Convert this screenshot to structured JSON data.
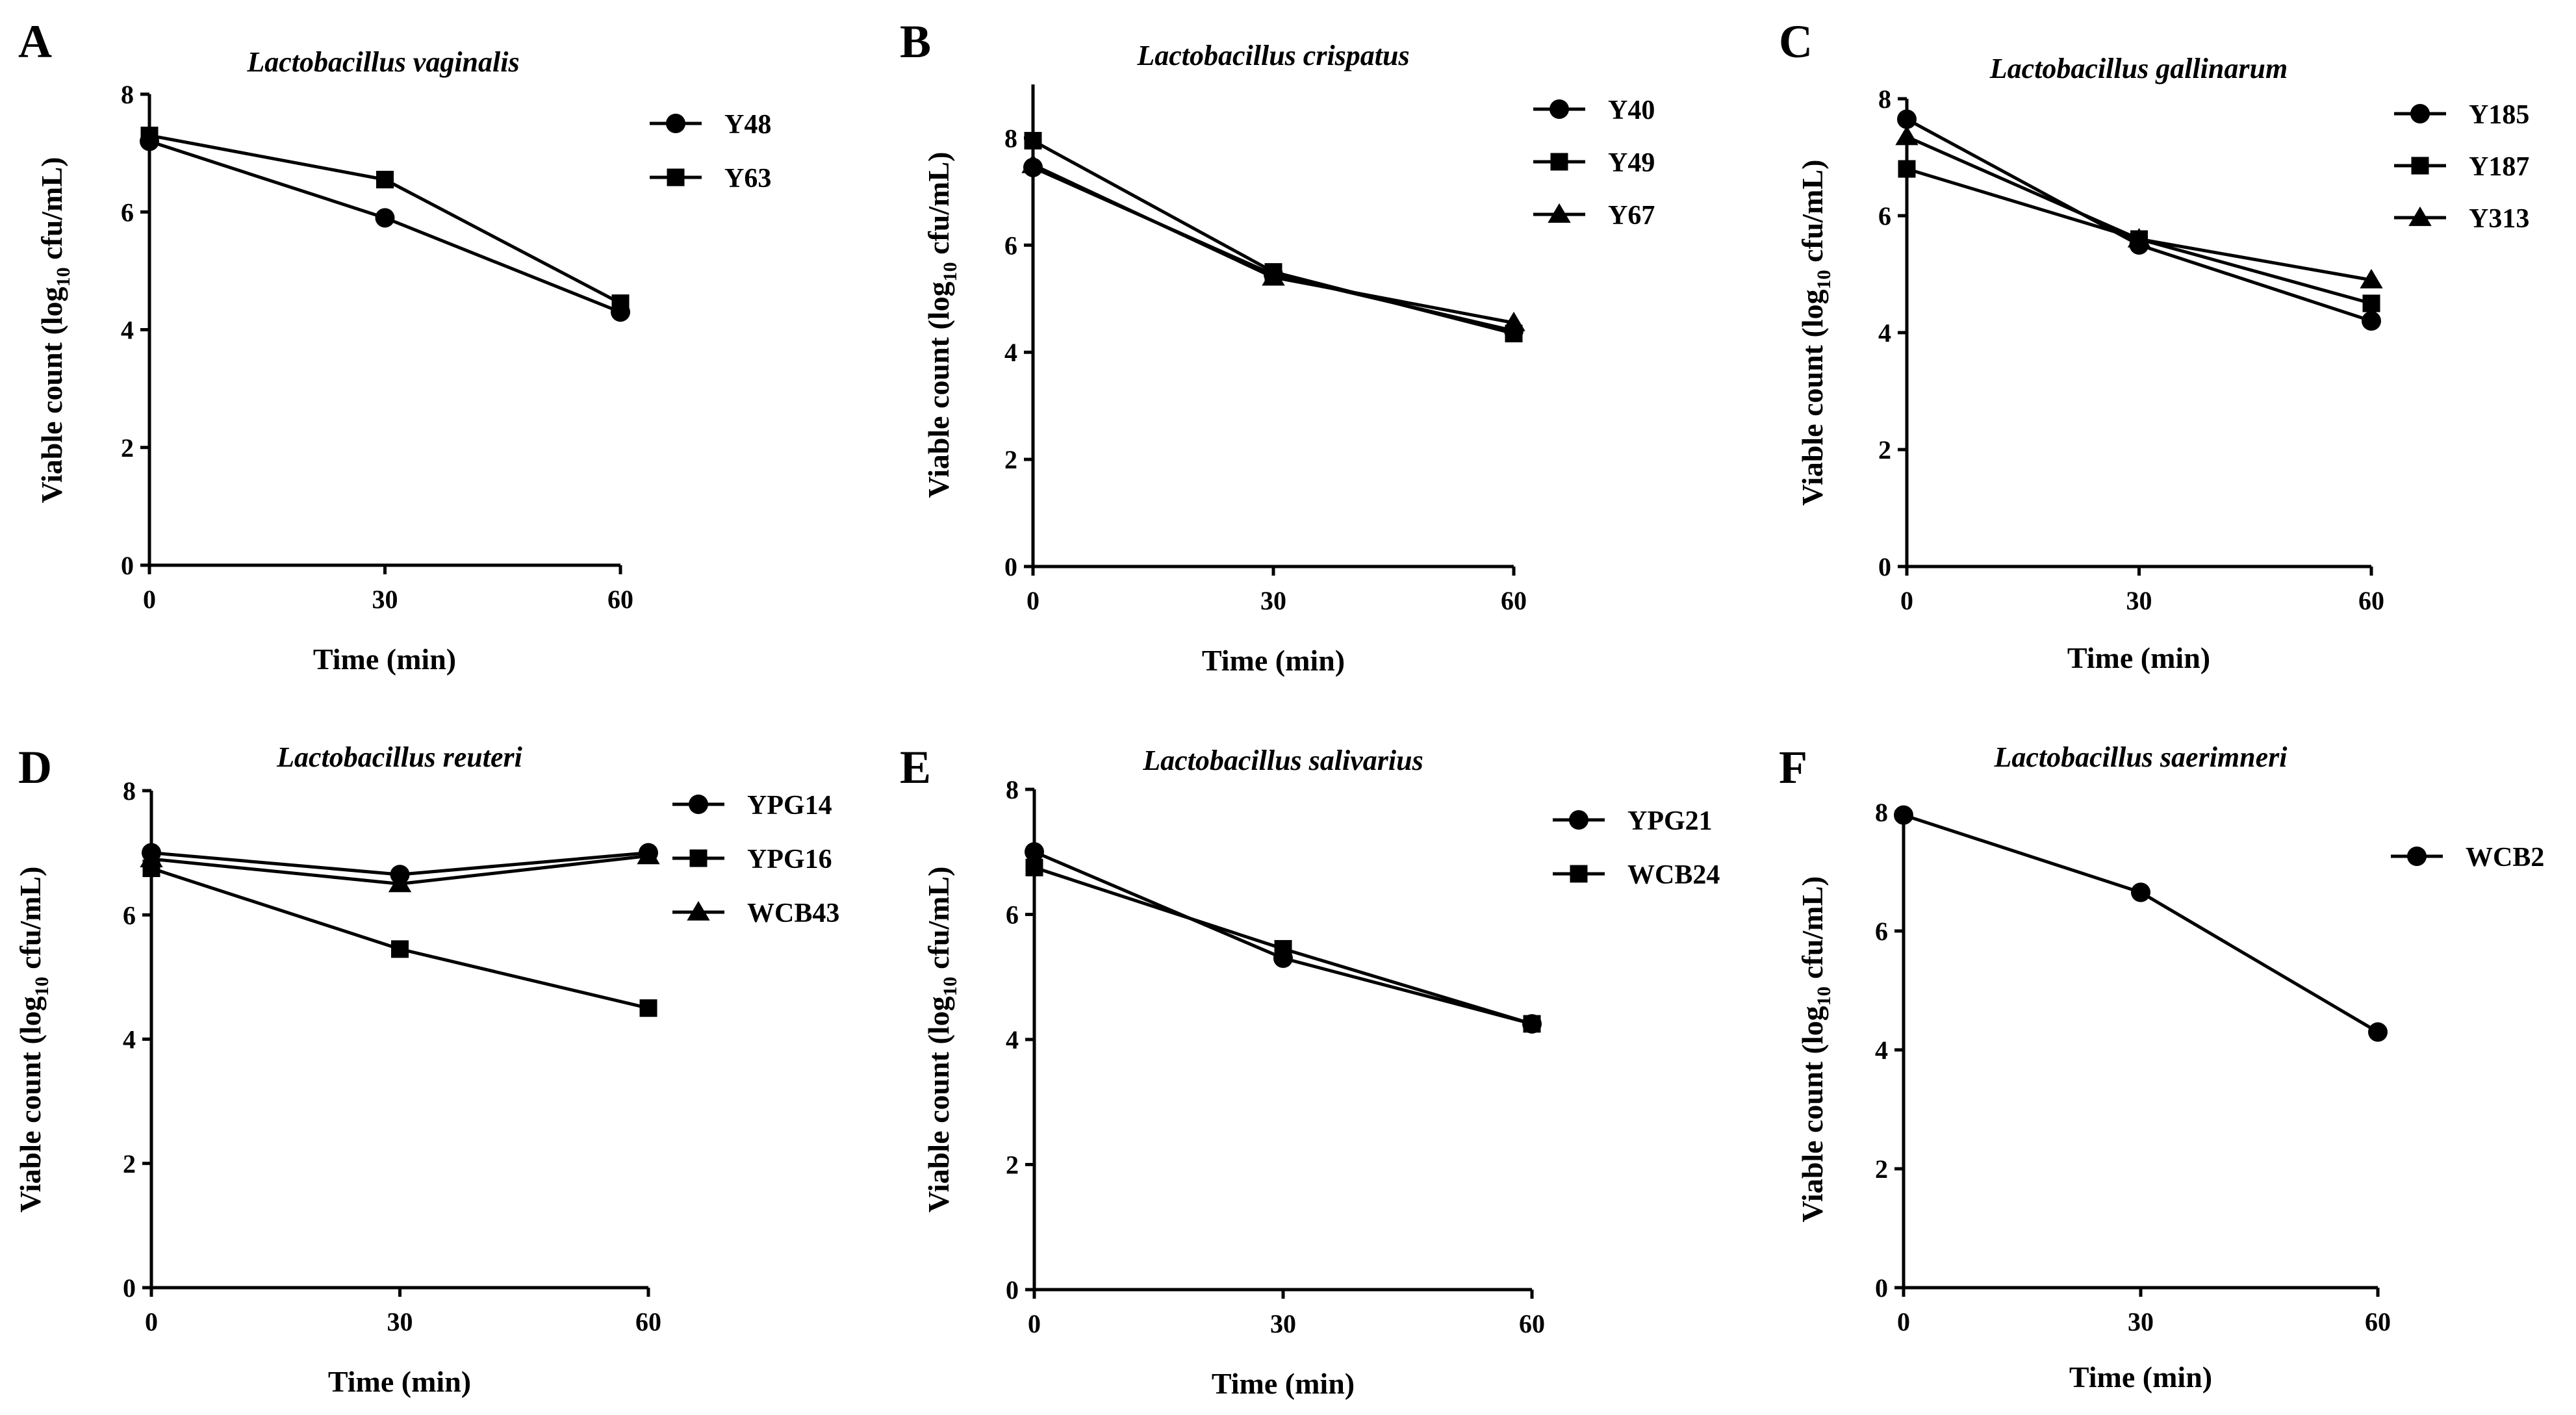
{
  "figure": {
    "y_label_parts": [
      "Viable count (log",
      "10",
      " cfu/mL)"
    ]
  },
  "chart_data": [
    {
      "panel": "A",
      "type": "line",
      "title": "Lactobacillus vaginalis",
      "xlabel": "Time (min)",
      "ylabel": "Viable count (log10 cfu/mL)",
      "x": [
        0,
        30,
        60
      ],
      "xticks": [
        "0",
        "30",
        "60"
      ],
      "ylim": [
        0,
        8
      ],
      "yticks": [
        "0",
        "2",
        "4",
        "6",
        "8"
      ],
      "series": [
        {
          "name": "Y48",
          "marker": "circle",
          "values": [
            7.2,
            5.9,
            4.3
          ]
        },
        {
          "name": "Y63",
          "marker": "square",
          "values": [
            7.3,
            6.55,
            4.45
          ]
        }
      ]
    },
    {
      "panel": "B",
      "type": "line",
      "title": "Lactobacillus crispatus",
      "xlabel": "Time (min)",
      "ylabel": "Viable count (log10 cfu/mL)",
      "x": [
        0,
        30,
        60
      ],
      "xticks": [
        "0",
        "30",
        "60"
      ],
      "ylim": [
        0,
        9
      ],
      "yticks": [
        "0",
        "2",
        "4",
        "6",
        "8"
      ],
      "series": [
        {
          "name": "Y40",
          "marker": "circle",
          "values": [
            7.45,
            5.45,
            4.4
          ]
        },
        {
          "name": "Y49",
          "marker": "square",
          "values": [
            7.95,
            5.5,
            4.35
          ]
        },
        {
          "name": "Y67",
          "marker": "triangle",
          "values": [
            7.5,
            5.4,
            4.55
          ]
        }
      ]
    },
    {
      "panel": "C",
      "type": "line",
      "title": "Lactobacillus gallinarum",
      "xlabel": "Time (min)",
      "ylabel": "Viable count (log10 cfu/mL)",
      "x": [
        0,
        30,
        60
      ],
      "xticks": [
        "0",
        "30",
        "60"
      ],
      "ylim": [
        0,
        8
      ],
      "yticks": [
        "0",
        "2",
        "4",
        "6",
        "8"
      ],
      "series": [
        {
          "name": "Y185",
          "marker": "circle",
          "values": [
            7.65,
            5.5,
            4.2
          ]
        },
        {
          "name": "Y187",
          "marker": "square",
          "values": [
            6.8,
            5.6,
            4.5
          ]
        },
        {
          "name": "Y313",
          "marker": "triangle",
          "values": [
            7.35,
            5.6,
            4.9
          ]
        }
      ]
    },
    {
      "panel": "D",
      "type": "line",
      "title": "Lactobacillus reuteri",
      "xlabel": "Time (min)",
      "ylabel": "Viable count (log10 cfu/mL)",
      "x": [
        0,
        30,
        60
      ],
      "xticks": [
        "0",
        "30",
        "60"
      ],
      "ylim": [
        0,
        8
      ],
      "yticks": [
        "0",
        "2",
        "4",
        "6",
        "8"
      ],
      "series": [
        {
          "name": "YPG14",
          "marker": "circle",
          "values": [
            7.0,
            6.65,
            7.0
          ]
        },
        {
          "name": "YPG16",
          "marker": "square",
          "values": [
            6.75,
            5.45,
            4.5
          ]
        },
        {
          "name": "WCB43",
          "marker": "triangle",
          "values": [
            6.9,
            6.5,
            6.95
          ]
        }
      ]
    },
    {
      "panel": "E",
      "type": "line",
      "title": "Lactobacillus salivarius",
      "xlabel": "Time (min)",
      "ylabel": "Viable count (log10 cfu/mL)",
      "x": [
        0,
        30,
        60
      ],
      "xticks": [
        "0",
        "30",
        "60"
      ],
      "ylim": [
        0,
        8
      ],
      "yticks": [
        "0",
        "2",
        "4",
        "6",
        "8"
      ],
      "series": [
        {
          "name": "YPG21",
          "marker": "circle",
          "values": [
            7.0,
            5.3,
            4.25
          ]
        },
        {
          "name": "WCB24",
          "marker": "square",
          "values": [
            6.75,
            5.45,
            4.25
          ]
        }
      ]
    },
    {
      "panel": "F",
      "type": "line",
      "title": "Lactobacillus saerimneri",
      "xlabel": "Time (min)",
      "ylabel": "Viable count (log10 cfu/mL)",
      "x": [
        0,
        30,
        60
      ],
      "xticks": [
        "0",
        "30",
        "60"
      ],
      "ylim": [
        0,
        8
      ],
      "yticks": [
        "0",
        "2",
        "4",
        "6",
        "8"
      ],
      "series": [
        {
          "name": "WCB2",
          "marker": "circle",
          "values": [
            7.95,
            6.65,
            4.3
          ]
        }
      ]
    }
  ]
}
